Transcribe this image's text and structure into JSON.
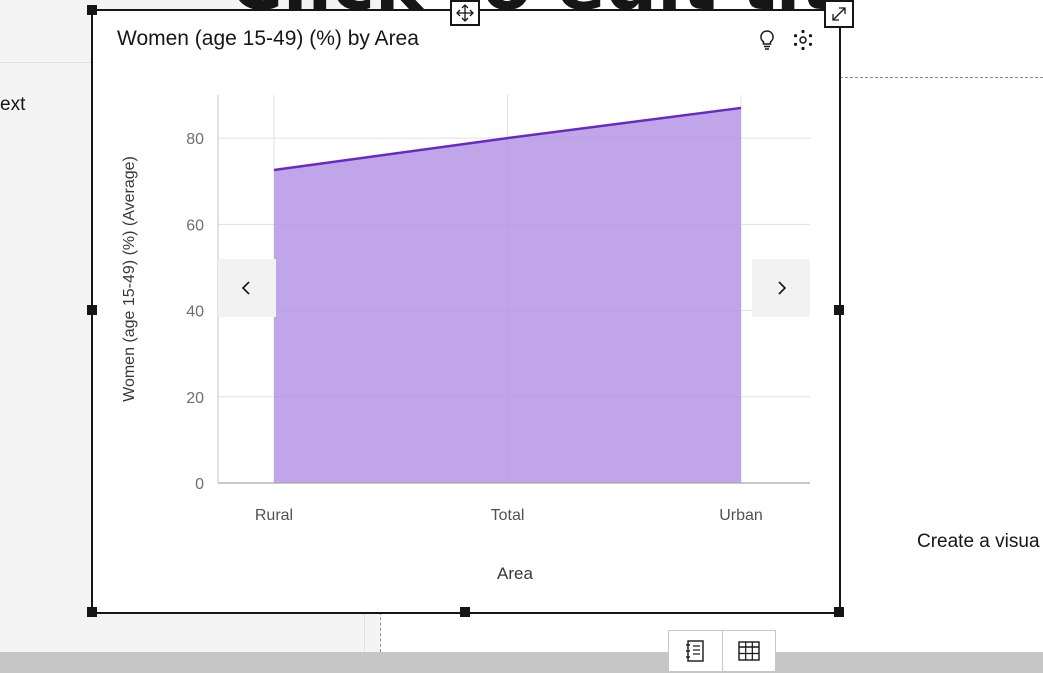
{
  "background": {
    "heading_fragment": "Click to edit tit",
    "left_text": "ext",
    "right_text": "Create a visua"
  },
  "widget": {
    "title": "Women (age 15-49) (%) by Area"
  },
  "icons": {
    "move": "move-arrows-icon",
    "expand": "expand-diagonal-icon",
    "insight": "lightbulb-icon",
    "settings": "settings-dots-icon",
    "prev": "chevron-left-icon",
    "next": "chevron-right-icon",
    "notes": "notes-icon",
    "table": "table-grid-icon"
  },
  "colors": {
    "area_fill": "#b292e3",
    "line": "#6929c4"
  },
  "chart_data": {
    "type": "area",
    "categories": [
      "Rural",
      "Total",
      "Urban"
    ],
    "values": [
      72.6,
      80.0,
      87.0
    ],
    "xlabel": "Area",
    "ylabel": "Women (age 15-49) (%) (Average)",
    "ylim": [
      0,
      90
    ],
    "yticks": [
      0,
      20,
      40,
      60,
      80
    ],
    "grid": true
  }
}
